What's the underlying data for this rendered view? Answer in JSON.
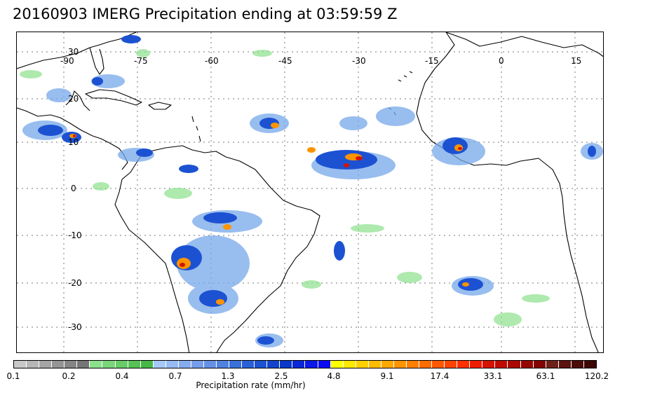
{
  "title": "20160903 IMERG Precipitation ending at 03:59:59 Z",
  "lon_labels": [
    "-90",
    "-75",
    "-60",
    "-45",
    "-30",
    "-15",
    "0",
    "15"
  ],
  "lat_labels": [
    "30",
    "20",
    "10",
    "0",
    "-10",
    "-20",
    "-30"
  ],
  "colorbar": {
    "title": "Precipitation rate (mm/hr)",
    "ticks": [
      "0.1",
      "0.2",
      "0.4",
      "0.7",
      "1.3",
      "2.5",
      "4.8",
      "9.1",
      "17.4",
      "33.1",
      "63.1",
      "120.2"
    ],
    "colors": [
      "#c8c8c8",
      "#b6b6b6",
      "#a5a5a5",
      "#959595",
      "#858585",
      "#767676",
      "#8ce08c",
      "#7ad67a",
      "#68cc68",
      "#56c256",
      "#46b846",
      "#a6c8f6",
      "#96baf2",
      "#86acee",
      "#769eea",
      "#6690e6",
      "#4f82e0",
      "#3a70da",
      "#2a60d6",
      "#1c52d2",
      "#1244cc",
      "#0a38c8",
      "#0a28d8",
      "#0a18e8",
      "#0a0af5",
      "#ffff00",
      "#ffe800",
      "#ffd000",
      "#ffbc00",
      "#ffa800",
      "#ff9400",
      "#ff8000",
      "#ff6c00",
      "#ff5800",
      "#ff4400",
      "#ff3000",
      "#f01c00",
      "#d61200",
      "#c00a00",
      "#aa0800",
      "#960600",
      "#820400",
      "#6e2018",
      "#5c1410",
      "#4c0c08",
      "#3c0604"
    ]
  }
}
